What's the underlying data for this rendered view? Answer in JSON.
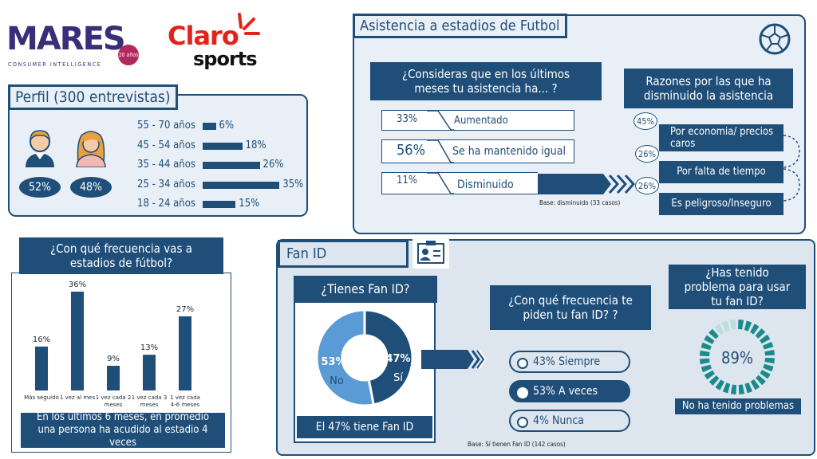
{
  "logos": {
    "mares": "MARES",
    "mares_sub": "CONSUMER INTELLIGENCE",
    "mares_badge": "20 años",
    "claro": "Claro",
    "sports": "sports"
  },
  "perfil": {
    "title": "Perfil (300 entrevistas)",
    "male_pct": "52%",
    "female_pct": "48%",
    "ages": [
      {
        "label": "55 - 70 años",
        "value": 6,
        "text": "6%"
      },
      {
        "label": "45 - 54 años",
        "value": 18,
        "text": "18%"
      },
      {
        "label": "35 - 44 años",
        "value": 26,
        "text": "26%"
      },
      {
        "label": "25 - 34 años",
        "value": 35,
        "text": "35%"
      },
      {
        "label": "18 - 24 años",
        "value": 15,
        "text": "15%"
      }
    ]
  },
  "asistencia": {
    "title": "Asistencia a estadios de Futbol",
    "question": "¿Consideras que en los últimos meses tu asistencia ha... ?",
    "options": [
      {
        "pct": "33%",
        "label": "Aumentado"
      },
      {
        "pct": "56%",
        "label": "Se ha mantenido igual"
      },
      {
        "pct": "11%",
        "label": "Disminuido"
      }
    ],
    "base": "Base: disminuido (33 casos)",
    "reasons_title": "Razones por las que ha disminuido la asistencia",
    "reasons": [
      {
        "pct": "45%",
        "label": "Por economia/ precios caros"
      },
      {
        "pct": "26%",
        "label": "Por falta de tiempo"
      },
      {
        "pct": "26%",
        "label": "Es peligroso/Inseguro"
      }
    ]
  },
  "frecuencia": {
    "title": "¿Con qué frecuencia vas a estadios de fútbol?",
    "footer": "En los últimos 6 meses, en promedio una persona ha acudido al estadio 4 veces"
  },
  "chart_data": {
    "type": "bar",
    "categories": [
      "Más seguido",
      "1 vez al mes",
      "1 vez cada 2 meses",
      "1 vez cada 3 meses",
      "1 vez cada 4-6 meses"
    ],
    "values": [
      16,
      36,
      9,
      13,
      27
    ],
    "value_labels": [
      "16%",
      "36%",
      "9%",
      "13%",
      "27%"
    ],
    "ylim": [
      0,
      40
    ],
    "color": "#1f4e79"
  },
  "fanid": {
    "title": "Fan ID",
    "tiene_title": "¿Tienes Fan ID?",
    "no_pct": "53%",
    "no_label": "No",
    "si_pct": "47%",
    "si_label": "Sí",
    "no_value": 53,
    "si_value": 47,
    "summary": "El 47% tiene Fan ID",
    "freq_title": "¿Con qué frecuencia te piden tu fan ID? ?",
    "freq_options": [
      "43% Siempre",
      "53% A veces",
      "4% Nunca"
    ],
    "base": "Base: Sí tienen Fan ID (142 casos)",
    "problema_title": "¿Has tenido problema para usar tu fan ID?",
    "problema_pct": "89%",
    "problema_value": 89,
    "problema_label": "No ha tenido problemas"
  },
  "colors": {
    "navy": "#1f4e79",
    "panel": "#e9eff6",
    "light_blue": "#5b9bd5",
    "claro_red": "#e2231a",
    "mares_purple": "#3a2e7a"
  }
}
